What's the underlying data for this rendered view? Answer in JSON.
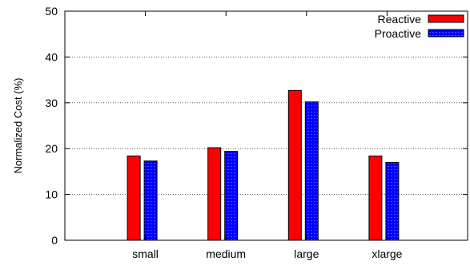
{
  "chart_data": {
    "type": "bar",
    "title": "",
    "xlabel": "",
    "ylabel": "Normalized Cost (%)",
    "categories": [
      "small",
      "medium",
      "large",
      "xlarge"
    ],
    "series": [
      {
        "name": "Reactive",
        "values": [
          18.4,
          20.2,
          32.7,
          18.4
        ],
        "color": "#ff0000",
        "pattern": "solid"
      },
      {
        "name": "Proactive",
        "values": [
          17.3,
          19.4,
          30.2,
          17.0
        ],
        "color": "#0000ff",
        "pattern": "dashed"
      }
    ],
    "ylim": [
      0,
      50
    ],
    "yticks": [
      0,
      10,
      20,
      30,
      40,
      50
    ],
    "grid": "horizontal dotted",
    "legend_position": "top-right"
  }
}
